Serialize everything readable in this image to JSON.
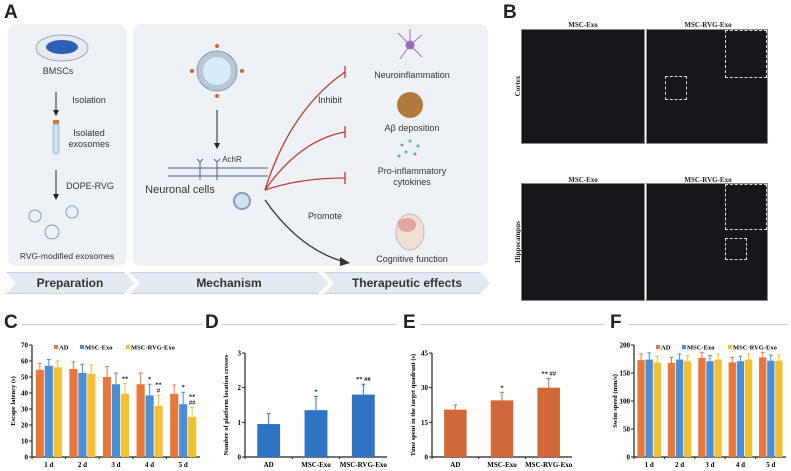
{
  "panelA": {
    "label": "A",
    "preparation": {
      "bmscs": "BMSCs",
      "isolation": "Isolation",
      "isolated_exosomes_1": "Isolated",
      "isolated_exosomes_2": "exosomes",
      "dope_rvg": "DOPE-RVG",
      "rvg_modified": "RVG-modified exosomes"
    },
    "mechanism": {
      "achr": "AchR",
      "neuronal_cells": "Neuronal cells",
      "inhibit": "Inhibit",
      "promote": "Promote"
    },
    "effects": {
      "neuroinflammation": "Neuroinflammation",
      "abeta": "Aβ deposition",
      "cytokines_1": "Pro-inflammatory",
      "cytokines_2": "cytokines",
      "cognitive": "Cognitive function"
    },
    "stages": [
      "Preparation",
      "Mechanism",
      "Therapeutic effects"
    ],
    "colors": {
      "inhibit": "#c0392b",
      "promote": "#333333",
      "box": "#eef2f7"
    }
  },
  "panelB": {
    "label": "B",
    "columns": [
      "MSC-Exo",
      "MSC-RVG-Exo"
    ],
    "rows": [
      "Cortex",
      "Hippocampus"
    ]
  },
  "chart_data": [
    {
      "panel": "C",
      "type": "bar",
      "categories": [
        "1 d",
        "2 d",
        "3 d",
        "4 d",
        "5 d"
      ],
      "ylabel": "Escape latency (s)",
      "ylim": [
        0,
        70
      ],
      "yticks": [
        0,
        10,
        20,
        30,
        40,
        50,
        60,
        70
      ],
      "legend": "top",
      "series": [
        {
          "name": "AD",
          "color": "#E8783A",
          "values": [
            54.5,
            55,
            50,
            45.5,
            39.5
          ],
          "errors": [
            4,
            4.5,
            6.5,
            7,
            5.5
          ]
        },
        {
          "name": "MSC-Exo",
          "color": "#4A8FD6",
          "values": [
            57,
            52.5,
            45.5,
            38.5,
            33
          ],
          "errors": [
            4,
            5.5,
            7,
            7,
            7.5
          ]
        },
        {
          "name": "MSC-RVG-Exo",
          "color": "#F5C02E",
          "values": [
            56,
            52,
            39.5,
            32,
            25
          ],
          "errors": [
            4,
            5.5,
            6.5,
            6.5,
            6
          ]
        }
      ],
      "annotations": [
        {
          "category": 2,
          "series": 2,
          "text": [
            "**"
          ]
        },
        {
          "category": 3,
          "series": 1,
          "text": [
            "*"
          ]
        },
        {
          "category": 3,
          "series": 2,
          "text": [
            "**",
            "#"
          ]
        },
        {
          "category": 4,
          "series": 1,
          "text": [
            "*"
          ]
        },
        {
          "category": 4,
          "series": 2,
          "text": [
            "**",
            "##"
          ]
        }
      ]
    },
    {
      "panel": "D",
      "type": "bar",
      "categories": [
        "AD",
        "MSC-Exo",
        "MSC-RVG-Exo"
      ],
      "ylabel": "Number of platform location crosses",
      "ylim": [
        0,
        3
      ],
      "yticks": [
        0,
        1,
        2,
        3
      ],
      "series": [
        {
          "color": "#2F73C2",
          "values": [
            0.95,
            1.35,
            1.8
          ],
          "errors": [
            0.3,
            0.4,
            0.3
          ]
        }
      ],
      "annotations": [
        {
          "category": 1,
          "series": 0,
          "text": [
            "*"
          ]
        },
        {
          "category": 2,
          "series": 0,
          "text": [
            "** ##"
          ]
        }
      ]
    },
    {
      "panel": "E",
      "type": "bar",
      "categories": [
        "AD",
        "MSC-Exo",
        "MSC-RVG-Exo"
      ],
      "ylabel": "Time spent in the target quadrant (s)",
      "ylim": [
        0,
        45
      ],
      "yticks": [
        0,
        15,
        30,
        45
      ],
      "series": [
        {
          "color": "#D2683A",
          "values": [
            20.5,
            24.5,
            30
          ],
          "errors": [
            2,
            3.5,
            4
          ]
        }
      ],
      "annotations": [
        {
          "category": 1,
          "series": 0,
          "text": [
            "*"
          ]
        },
        {
          "category": 2,
          "series": 0,
          "text": [
            "** ##"
          ]
        }
      ]
    },
    {
      "panel": "F",
      "type": "bar",
      "categories": [
        "1 d",
        "2 d",
        "3 d",
        "4 d",
        "5 d"
      ],
      "ylabel": "Swim speed (mm/s)",
      "ylim": [
        0,
        200
      ],
      "yticks": [
        0,
        50,
        100,
        150,
        200
      ],
      "legend": "top",
      "series": [
        {
          "name": "AD",
          "color": "#E8783A",
          "values": [
            173,
            168,
            177,
            169,
            178
          ],
          "errors": [
            11,
            10,
            10,
            9,
            9
          ]
        },
        {
          "name": "MSC-Exo",
          "color": "#4A8FD6",
          "values": [
            174,
            174,
            171,
            171,
            172
          ],
          "errors": [
            12,
            10,
            10,
            9,
            10
          ]
        },
        {
          "name": "MSC-RVG-Exo",
          "color": "#F5C02E",
          "values": [
            169,
            171,
            174,
            174,
            172
          ],
          "errors": [
            11,
            10,
            10,
            10,
            10
          ]
        }
      ],
      "annotations": []
    }
  ]
}
